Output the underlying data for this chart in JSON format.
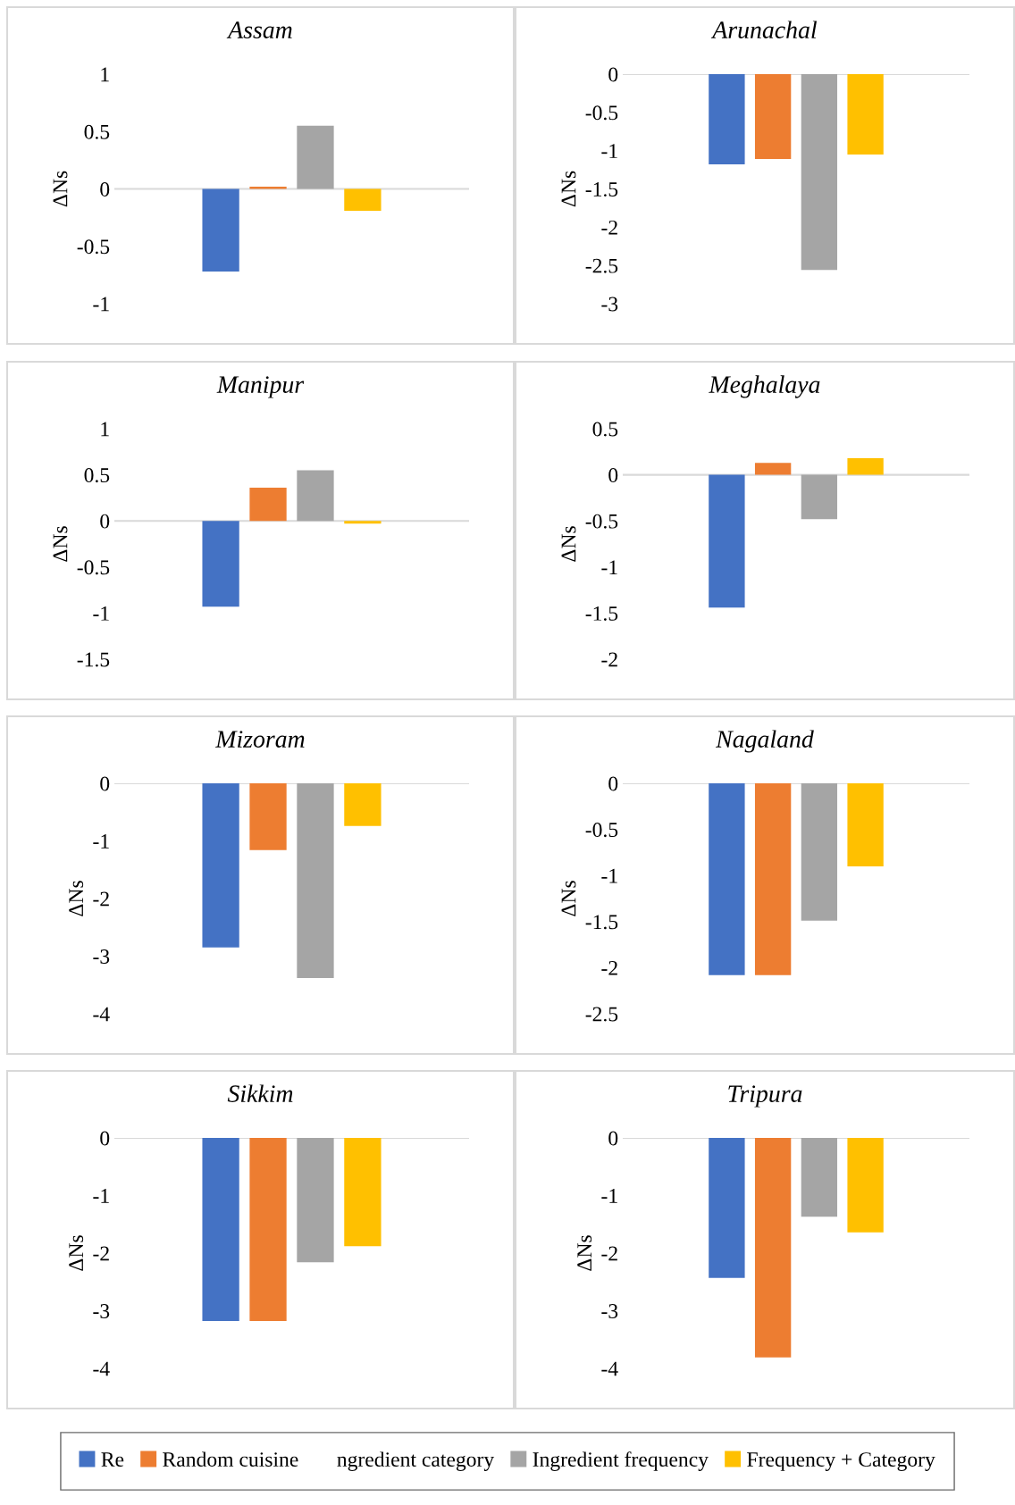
{
  "chart_data": [
    {
      "type": "bar",
      "title": "Assam",
      "ylabel": "ΔNs",
      "categories": [
        null
      ],
      "ylim": [
        -1,
        1
      ],
      "yticks": [
        -1,
        -0.5,
        0,
        0.5,
        1
      ],
      "series": [
        {
          "color": "#4472c4",
          "values": [
            -0.72
          ]
        },
        {
          "color": "#ed7d31",
          "values": [
            0.02
          ]
        },
        {
          "color": "#a5a5a5",
          "values": [
            0.55
          ]
        },
        {
          "color": "#ffc000",
          "values": [
            -0.19
          ]
        }
      ]
    },
    {
      "type": "bar",
      "title": "Arunachal",
      "ylabel": "ΔNs",
      "categories": [
        null
      ],
      "ylim": [
        -3,
        0
      ],
      "yticks": [
        -3,
        -2.5,
        -2,
        -1.5,
        -1,
        -0.5,
        0
      ],
      "series": [
        {
          "color": "#4472c4",
          "values": [
            -1.18
          ]
        },
        {
          "color": "#ed7d31",
          "values": [
            -1.11
          ]
        },
        {
          "color": "#a5a5a5",
          "values": [
            -2.56
          ]
        },
        {
          "color": "#ffc000",
          "values": [
            -1.05
          ]
        }
      ]
    },
    {
      "type": "bar",
      "title": "Manipur",
      "ylabel": "ΔNs",
      "categories": [
        null
      ],
      "ylim": [
        -1.5,
        1
      ],
      "yticks": [
        -1.5,
        -1,
        -0.5,
        0,
        0.5,
        1
      ],
      "series": [
        {
          "color": "#4472c4",
          "values": [
            -0.93
          ]
        },
        {
          "color": "#ed7d31",
          "values": [
            0.36
          ]
        },
        {
          "color": "#a5a5a5",
          "values": [
            0.55
          ]
        },
        {
          "color": "#ffc000",
          "values": [
            -0.03
          ]
        }
      ]
    },
    {
      "type": "bar",
      "title": "Meghalaya",
      "ylabel": "ΔNs",
      "categories": [
        null
      ],
      "ylim": [
        -2,
        0.5
      ],
      "yticks": [
        -2,
        -1.5,
        -1,
        -0.5,
        0,
        0.5
      ],
      "series": [
        {
          "color": "#4472c4",
          "values": [
            -1.44
          ]
        },
        {
          "color": "#ed7d31",
          "values": [
            0.13
          ]
        },
        {
          "color": "#a5a5a5",
          "values": [
            -0.48
          ]
        },
        {
          "color": "#ffc000",
          "values": [
            0.18
          ]
        }
      ]
    },
    {
      "type": "bar",
      "title": "Mizoram",
      "ylabel": "ΔNs",
      "categories": [
        null
      ],
      "ylim": [
        -4,
        0
      ],
      "yticks": [
        -4,
        -3,
        -2,
        -1,
        0
      ],
      "series": [
        {
          "color": "#4472c4",
          "values": [
            -2.85
          ]
        },
        {
          "color": "#ed7d31",
          "values": [
            -1.16
          ]
        },
        {
          "color": "#a5a5a5",
          "values": [
            -3.38
          ]
        },
        {
          "color": "#ffc000",
          "values": [
            -0.74
          ]
        }
      ]
    },
    {
      "type": "bar",
      "title": "Nagaland",
      "ylabel": "ΔNs",
      "categories": [
        null
      ],
      "ylim": [
        -2.5,
        0
      ],
      "yticks": [
        -2.5,
        -2,
        -1.5,
        -1,
        -0.5,
        0
      ],
      "series": [
        {
          "color": "#4472c4",
          "values": [
            -2.08
          ]
        },
        {
          "color": "#ed7d31",
          "values": [
            -2.08
          ]
        },
        {
          "color": "#a5a5a5",
          "values": [
            -1.49
          ]
        },
        {
          "color": "#ffc000",
          "values": [
            -0.9
          ]
        }
      ]
    },
    {
      "type": "bar",
      "title": "Sikkim",
      "ylabel": "ΔNs",
      "categories": [
        null
      ],
      "ylim": [
        -4,
        0
      ],
      "yticks": [
        -4,
        -3,
        -2,
        -1,
        0
      ],
      "series": [
        {
          "color": "#4472c4",
          "values": [
            -3.18
          ]
        },
        {
          "color": "#ed7d31",
          "values": [
            -3.18
          ]
        },
        {
          "color": "#a5a5a5",
          "values": [
            -2.16
          ]
        },
        {
          "color": "#ffc000",
          "values": [
            -1.88
          ]
        }
      ]
    },
    {
      "type": "bar",
      "title": "Tripura",
      "ylabel": "ΔNs",
      "categories": [
        null
      ],
      "ylim": [
        -4,
        0
      ],
      "yticks": [
        -4,
        -3,
        -2,
        -1,
        0
      ],
      "legend": "bottom",
      "annotations": [
        "ngredient category"
      ],
      "series": [
        {
          "name": "Re",
          "color": "#4472c4",
          "values": [
            -2.43
          ]
        },
        {
          "name": "Random cuisine",
          "color": "#ed7d31",
          "values": [
            -3.81
          ]
        },
        {
          "name": "Ingredient frequency",
          "color": "#a5a5a5",
          "values": [
            -1.37
          ]
        },
        {
          "name": "Frequency + Category",
          "color": "#ffc000",
          "values": [
            -1.64
          ]
        }
      ]
    }
  ]
}
